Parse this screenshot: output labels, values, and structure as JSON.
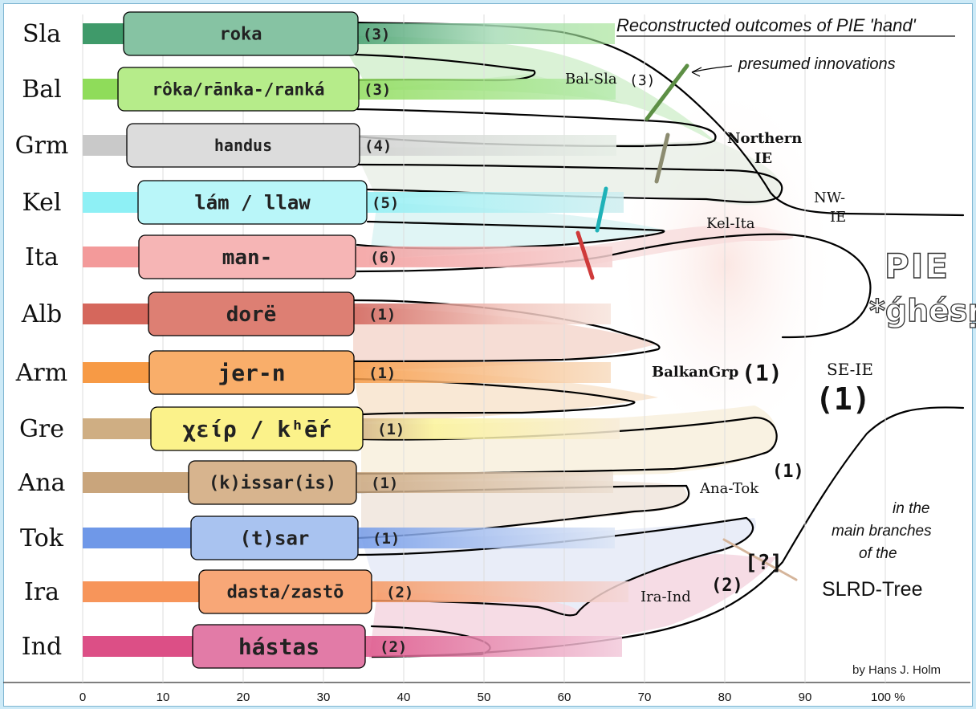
{
  "title": "Reconstructed outcomes of PIE 'hand'",
  "innovation_note": "presumed innovations",
  "root": {
    "label": "PIE",
    "form": "*ǵhésṛ"
  },
  "side_note": [
    "in the",
    "main branches",
    "of the"
  ],
  "tree_name": "SLRD-Tree",
  "credit": "by Hans J. Holm",
  "axis": {
    "ticks": [
      "0",
      "10",
      "20",
      "30",
      "40",
      "50",
      "60",
      "70",
      "80",
      "90",
      "100 %"
    ]
  },
  "branches": [
    {
      "code": "Sla",
      "form": "roka",
      "count": "(3)",
      "color": "#3f9a6a"
    },
    {
      "code": "Bal",
      "form": "rôka/rānka-/ranká",
      "count": "(3)",
      "color": "#8fdc5a"
    },
    {
      "code": "Grm",
      "form": "handus",
      "count": "(4)",
      "color": "#c9c9c9"
    },
    {
      "code": "Kel",
      "form": "lám / llaw",
      "count": "(5)",
      "color": "#8ef0f5"
    },
    {
      "code": "Ita",
      "form": "man-",
      "count": "(6)",
      "color": "#f39a9a"
    },
    {
      "code": "Alb",
      "form": "dorë",
      "count": "(1)",
      "color": "#d5675c"
    },
    {
      "code": "Arm",
      "form": "jer-n",
      "count": "(1)",
      "color": "#f79a45"
    },
    {
      "code": "Gre",
      "form": "χείρ / kʰḗr",
      "count": "(1)",
      "color": "#cfae83"
    },
    {
      "code": "Ana",
      "form": "(k)issar(is)",
      "count": "(1)",
      "color": "#c9a57c"
    },
    {
      "code": "Tok",
      "form": "(t)sar",
      "count": "(1)",
      "color": "#6f98e8"
    },
    {
      "code": "Ira",
      "form": "dasta/zastō",
      "count": "(2)",
      "color": "#f7955a"
    },
    {
      "code": "Ind",
      "form": "hástas",
      "count": "(2)",
      "color": "#dc4f86"
    }
  ],
  "nodes": {
    "bal_sla": "Bal-Sla",
    "bal_sla_count": "(3)",
    "northern": [
      "Northern",
      "IE"
    ],
    "nw": [
      "NW-",
      "IE"
    ],
    "kel_ita": "Kel-Ita",
    "balkan": "BalkanGrp",
    "balkan_count": "(1)",
    "se": "SE-IE",
    "se_count": "(1)",
    "ana_tok": "Ana-Tok",
    "ana_tok_count": "(1)",
    "ira_ind": "Ira-Ind",
    "ira_ind_count": "(2)",
    "uncertain": "[?]"
  },
  "innovation_marks": [
    {
      "between": "Bal-Sla",
      "color": "#5d8f45"
    },
    {
      "between": "Grm",
      "color": "#8c8c70"
    },
    {
      "between": "Kel",
      "color": "#1fb2b8"
    },
    {
      "between": "Ita",
      "color": "#cf3a3a"
    },
    {
      "between": "Ana-Tok / Ira-Ind",
      "color": "#d5b59b"
    }
  ]
}
